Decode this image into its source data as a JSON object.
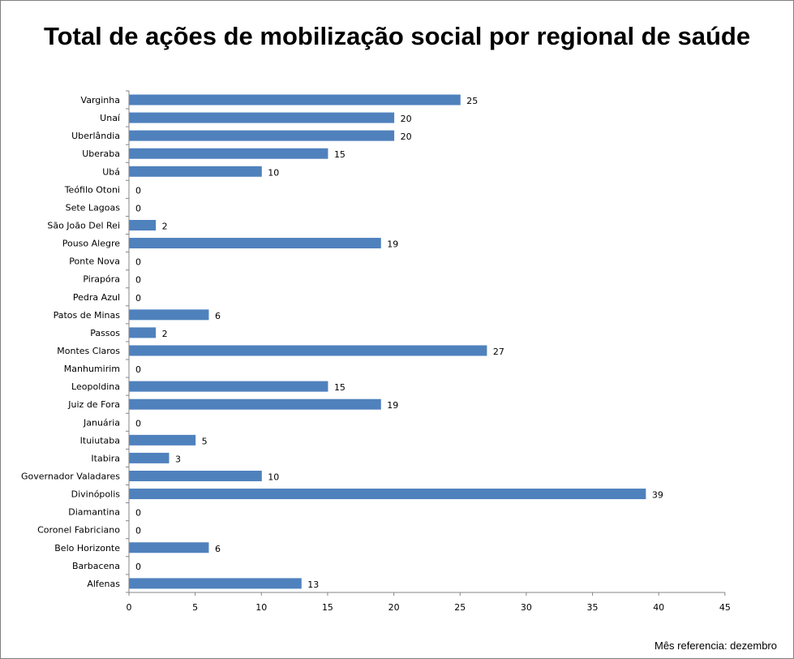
{
  "chart_data": {
    "type": "bar",
    "orientation": "horizontal",
    "title": "Total de ações de mobilização social por regional de saúde",
    "note": "Mês referencia: dezembro",
    "xlabel": "",
    "ylabel": "",
    "xlim": [
      0,
      45
    ],
    "x_ticks": [
      0,
      5,
      10,
      15,
      20,
      25,
      30,
      35,
      40,
      45
    ],
    "grid": false,
    "legend": "none",
    "bar_color": "#4f81bd",
    "data_labels": true,
    "categories": [
      "Varginha",
      "Unaí",
      "Uberlândia",
      "Uberaba",
      "Ubá",
      "Teófilo Otoni",
      "Sete Lagoas",
      "São João Del Rei",
      "Pouso Alegre",
      "Ponte Nova",
      "Pirapóra",
      "Pedra Azul",
      "Patos de Minas",
      "Passos",
      "Montes Claros",
      "Manhumirim",
      "Leopoldina",
      "Juiz de Fora",
      "Januária",
      "Ituiutaba",
      "Itabira",
      "Governador Valadares",
      "Divinópolis",
      "Diamantina",
      "Coronel Fabriciano",
      "Belo Horizonte",
      "Barbacena",
      "Alfenas"
    ],
    "values": [
      25,
      20,
      20,
      15,
      10,
      0,
      0,
      2,
      19,
      0,
      0,
      0,
      6,
      2,
      27,
      0,
      15,
      19,
      0,
      5,
      3,
      10,
      39,
      0,
      0,
      6,
      0,
      13
    ]
  }
}
